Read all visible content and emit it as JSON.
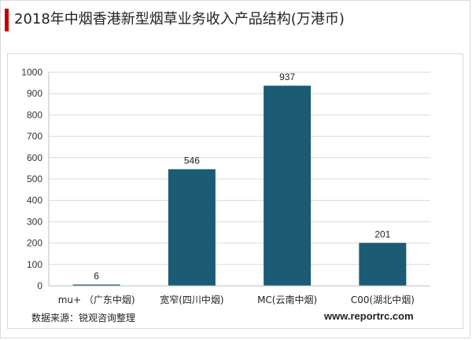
{
  "title": "2018年中烟香港新型烟草业务收入产品结构(万港币)",
  "source": "数据来源：锐观咨询整理",
  "website": "www.reportrc.com",
  "colors": {
    "bar": "#1b5b73",
    "accent": "#c00000",
    "grid": "#d9d9d9"
  },
  "chart_data": {
    "type": "bar",
    "categories": [
      "mu+ （广东中烟)",
      "宽窄(四川中烟)",
      "MC(云南中烟)",
      "C00(湖北中烟)"
    ],
    "values": [
      6,
      546,
      937,
      201
    ],
    "data_labels": [
      "6",
      "546",
      "937",
      "201"
    ],
    "ylim": [
      0,
      1000
    ],
    "yticks": [
      0,
      100,
      200,
      300,
      400,
      500,
      600,
      700,
      800,
      900,
      1000
    ],
    "grid": true,
    "xlabel": "",
    "ylabel": ""
  }
}
